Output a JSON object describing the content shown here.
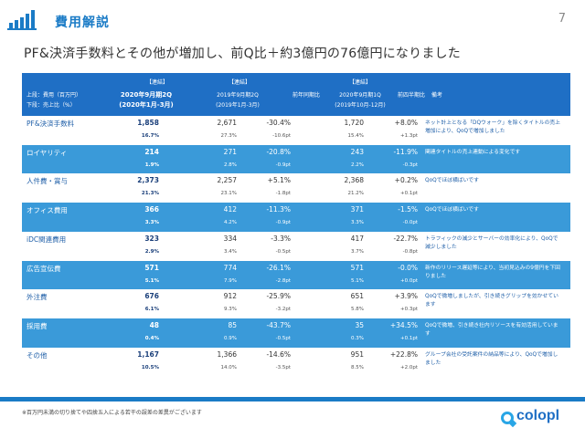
{
  "page": {
    "title": "費用解説",
    "page_number": "7"
  },
  "headline": "PF&決済手数料とその他が増加し、前Q比＋約3億円の76億円になりました",
  "table": {
    "left_header_line1": "上段：費用（百万円）",
    "left_header_line2": "下段：売上比（%）",
    "groups": [
      {
        "tag": "【連結】",
        "period": "2020年9月期2Q",
        "range": "(2020年1月-3月)"
      },
      {
        "tag": "【連結】",
        "period": "2019年9月期2Q",
        "range": "(2019年1月-3月)"
      },
      {
        "tag": "【連結】",
        "period": "2020年9月期1Q",
        "range": "(2019年10月-12月)"
      }
    ],
    "yoy_header": "前年同期比",
    "qoq_header": "前四半期比",
    "note_header": "備考",
    "rows": [
      {
        "name": "PF&決済手数料",
        "cur": "1,858",
        "cur_pct": "16.7%",
        "ly": "2,671",
        "ly_pct": "27.3%",
        "yoy": "-30.4%",
        "yoy_pt": "-10.6pt",
        "pq": "1,720",
        "pq_pct": "15.4%",
        "qoq": "+8.0%",
        "qoq_pt": "+1.3pt",
        "note": "ネット計上となる「DQウォーク」を除くタイトルの売上増加により、QoQで増加しました"
      },
      {
        "name": "ロイヤリティ",
        "cur": "214",
        "cur_pct": "1.9%",
        "ly": "271",
        "ly_pct": "2.8%",
        "yoy": "-20.8%",
        "yoy_pt": "-0.9pt",
        "pq": "243",
        "pq_pct": "2.2%",
        "qoq": "-11.9%",
        "qoq_pt": "-0.3pt",
        "note": "関連タイトルの売上連動による変化です"
      },
      {
        "name": "人件費・賞与",
        "cur": "2,373",
        "cur_pct": "21.3%",
        "ly": "2,257",
        "ly_pct": "23.1%",
        "yoy": "+5.1%",
        "yoy_pt": "-1.8pt",
        "pq": "2,368",
        "pq_pct": "21.2%",
        "qoq": "+0.2%",
        "qoq_pt": "+0.1pt",
        "note": "QoQでほぼ横ばいです"
      },
      {
        "name": "オフィス費用",
        "cur": "366",
        "cur_pct": "3.3%",
        "ly": "412",
        "ly_pct": "4.2%",
        "yoy": "-11.3%",
        "yoy_pt": "-0.9pt",
        "pq": "371",
        "pq_pct": "3.3%",
        "qoq": "-1.5%",
        "qoq_pt": "-0.0pt",
        "note": "QoQでほぼ横ばいです"
      },
      {
        "name": "iDC関連費用",
        "cur": "323",
        "cur_pct": "2.9%",
        "ly": "334",
        "ly_pct": "3.4%",
        "yoy": "-3.3%",
        "yoy_pt": "-0.5pt",
        "pq": "417",
        "pq_pct": "3.7%",
        "qoq": "-22.7%",
        "qoq_pt": "-0.8pt",
        "note": "トラフィックの減少とサーバーの効率化により、QoQで減少しました"
      },
      {
        "name": "広告宣伝費",
        "cur": "571",
        "cur_pct": "5.1%",
        "ly": "774",
        "ly_pct": "7.9%",
        "yoy": "-26.1%",
        "yoy_pt": "-2.8pt",
        "pq": "571",
        "pq_pct": "5.1%",
        "qoq": "-0.0%",
        "qoq_pt": "+0.0pt",
        "note": "新作のリリース遅延等により、当初見込みの9億円を下回りました"
      },
      {
        "name": "外注費",
        "cur": "676",
        "cur_pct": "6.1%",
        "ly": "912",
        "ly_pct": "9.3%",
        "yoy": "-25.9%",
        "yoy_pt": "-3.2pt",
        "pq": "651",
        "pq_pct": "5.8%",
        "qoq": "+3.9%",
        "qoq_pt": "+0.3pt",
        "note": "QoQで微増しましたが、引き続きグリップを効かせています"
      },
      {
        "name": "採用費",
        "cur": "48",
        "cur_pct": "0.4%",
        "ly": "85",
        "ly_pct": "0.9%",
        "yoy": "-43.7%",
        "yoy_pt": "-0.5pt",
        "pq": "35",
        "pq_pct": "0.3%",
        "qoq": "+34.5%",
        "qoq_pt": "+0.1pt",
        "note": "QoQで微増、引き続き社内リソースを有効活用しています"
      },
      {
        "name": "その他",
        "cur": "1,167",
        "cur_pct": "10.5%",
        "ly": "1,366",
        "ly_pct": "14.0%",
        "yoy": "-14.6%",
        "yoy_pt": "-3.5pt",
        "pq": "951",
        "pq_pct": "8.5%",
        "qoq": "+22.8%",
        "qoq_pt": "+2.0pt",
        "note": "グループ会社の受託案件の納品等により、QoQで増加しました"
      }
    ]
  },
  "footnote": "※百万円未満の切り捨てや四捨五入による若干の誤差の差異がございます",
  "brand": "colopl",
  "colors": {
    "accent": "#1a7bc6",
    "header_bg": "#1f6fc5",
    "row_shade": "#3a9ad9"
  }
}
